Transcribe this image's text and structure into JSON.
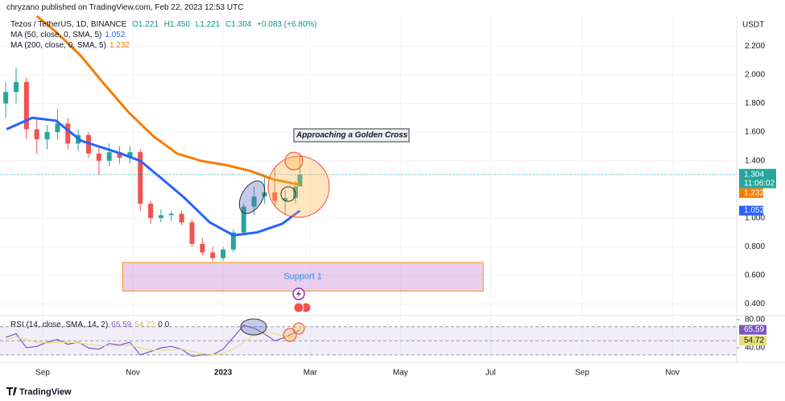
{
  "header": {
    "published": "chryzano published on TradingView.com, Feb 22, 2023 12:53 UTC",
    "symbol": "Tezos / TetherUS, 1D, BINANCE",
    "open": "O1.221",
    "high": "H1.450",
    "low": "L1.221",
    "close": "C1.304",
    "change": "+0.083 (+6.80%)",
    "currency": "USDT",
    "countdown": "11:06:02",
    "brand": "TradingView"
  },
  "chart_data": {
    "type": "candlestick",
    "x": [
      -25,
      -18,
      -11,
      -4,
      3,
      10,
      17,
      24,
      31,
      38,
      45,
      52,
      59,
      66,
      73,
      80,
      87,
      94,
      101,
      108,
      115,
      122,
      129,
      136,
      143,
      150,
      157,
      164,
      171,
      174
    ],
    "ohlc": [
      [
        1.8,
        1.95,
        1.7,
        1.88
      ],
      [
        1.88,
        2.05,
        1.8,
        1.95
      ],
      [
        1.95,
        1.98,
        1.55,
        1.62
      ],
      [
        1.62,
        1.7,
        1.45,
        1.55
      ],
      [
        1.55,
        1.65,
        1.48,
        1.6
      ],
      [
        1.6,
        1.76,
        1.55,
        1.66
      ],
      [
        1.66,
        1.7,
        1.48,
        1.52
      ],
      [
        1.52,
        1.62,
        1.47,
        1.58
      ],
      [
        1.58,
        1.6,
        1.42,
        1.45
      ],
      [
        1.45,
        1.5,
        1.3,
        1.4
      ],
      [
        1.4,
        1.52,
        1.36,
        1.46
      ],
      [
        1.46,
        1.5,
        1.38,
        1.42
      ],
      [
        1.42,
        1.5,
        1.38,
        1.46
      ],
      [
        1.46,
        1.48,
        1.05,
        1.1
      ],
      [
        1.1,
        1.12,
        0.96,
        1.0
      ],
      [
        1.0,
        1.06,
        0.97,
        1.02
      ],
      [
        1.02,
        1.05,
        0.98,
        1.03
      ],
      [
        1.03,
        1.05,
        0.95,
        0.97
      ],
      [
        0.97,
        0.99,
        0.8,
        0.82
      ],
      [
        0.82,
        0.86,
        0.74,
        0.76
      ],
      [
        0.76,
        0.8,
        0.7,
        0.72
      ],
      [
        0.72,
        0.8,
        0.7,
        0.78
      ],
      [
        0.78,
        0.92,
        0.76,
        0.9
      ],
      [
        0.9,
        1.1,
        0.88,
        1.08
      ],
      [
        1.08,
        1.22,
        1.02,
        1.15
      ],
      [
        1.15,
        1.3,
        1.1,
        1.18
      ],
      [
        1.18,
        1.35,
        1.08,
        1.12
      ],
      [
        1.12,
        1.2,
        1.02,
        1.14
      ],
      [
        1.14,
        1.26,
        1.1,
        1.22
      ],
      [
        1.221,
        1.45,
        1.221,
        1.304
      ]
    ],
    "up_color": "#26a69a",
    "down_color": "#ef5350",
    "series": [
      {
        "name": "MA (50, close, 0, SMA, 5)",
        "color": "#2962ff",
        "x": [
          -24.5,
          -7,
          9,
          26,
          53,
          66,
          80,
          96,
          113,
          129,
          145,
          162,
          174
        ],
        "values": [
          1.62,
          1.7,
          1.68,
          1.54,
          1.45,
          1.4,
          1.28,
          1.14,
          0.97,
          0.88,
          0.9,
          0.96,
          1.052
        ]
      },
      {
        "name": "MA (200, close, 0, SMA, 5)",
        "color": "#f57c00",
        "x": [
          -4,
          9,
          26,
          42,
          58,
          75,
          91,
          107,
          124,
          140,
          156,
          174
        ],
        "values": [
          2.41,
          2.3,
          2.13,
          1.93,
          1.74,
          1.57,
          1.45,
          1.4,
          1.37,
          1.33,
          1.27,
          1.232
        ]
      }
    ],
    "xlim": [
      -28.9,
      469.5
    ],
    "xticks": [
      {
        "value": 0,
        "label": "Sep"
      },
      {
        "value": 61,
        "label": "Nov"
      },
      {
        "value": 122,
        "label": "2023"
      },
      {
        "value": 181,
        "label": "Mar"
      },
      {
        "value": 242,
        "label": "May"
      },
      {
        "value": 303,
        "label": "Jul"
      },
      {
        "value": 365,
        "label": "Sep"
      },
      {
        "value": 426,
        "label": "Nov"
      }
    ],
    "ylim": [
      0.33,
      2.41
    ],
    "yticks": [
      {
        "value": 0.4,
        "label": "0.400"
      },
      {
        "value": 0.6,
        "label": "0.600"
      },
      {
        "value": 0.8,
        "label": "0.800"
      },
      {
        "value": 1.0,
        "label": "1.000"
      },
      {
        "value": 1.4,
        "label": "1.400"
      },
      {
        "value": 1.6,
        "label": "1.600"
      },
      {
        "value": 1.8,
        "label": "1.800"
      },
      {
        "value": 2.0,
        "label": "2.000"
      },
      {
        "value": 2.2,
        "label": "2.200"
      }
    ],
    "grid": true,
    "annotation": "Approaching a Golden Cross",
    "support_zone": {
      "label": "Support 1",
      "top": 0.69,
      "bottom": 0.49,
      "from": 54,
      "to": 298
    },
    "rsi": {
      "title": "RSI (14, close, SMA, 14, 2)",
      "extra": "0  0",
      "series": [
        {
          "name": "RSI",
          "color": "#7e57c2",
          "values": [
            55,
            60,
            40,
            42,
            48,
            52,
            45,
            48,
            40,
            38,
            46,
            44,
            48,
            30,
            35,
            40,
            42,
            38,
            28,
            30,
            30,
            38,
            55,
            72,
            68,
            60,
            50,
            55,
            62,
            65.59
          ]
        },
        {
          "name": "SMA",
          "color": "#e6e07a",
          "values": [
            52,
            55,
            52,
            48,
            47,
            48,
            48,
            47,
            45,
            43,
            43,
            43,
            44,
            40,
            37,
            37,
            37,
            38,
            35,
            32,
            30,
            32,
            38,
            48,
            58,
            63,
            60,
            56,
            55,
            54.72
          ]
        }
      ],
      "ylim": [
        21.7,
        85.7
      ],
      "yticks": [
        {
          "value": 40,
          "label": "40.00"
        },
        {
          "value": 80,
          "label": "80.00"
        }
      ],
      "bands": [
        30,
        50,
        70
      ]
    }
  }
}
